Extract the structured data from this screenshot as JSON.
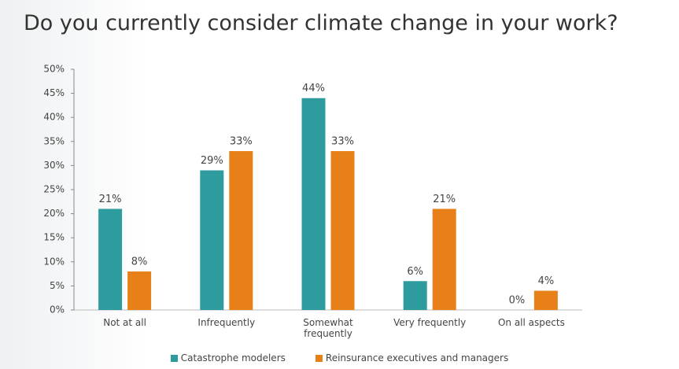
{
  "chart_data": {
    "type": "bar",
    "title": "Do you currently consider climate change in your work?",
    "categories": [
      "Not at all",
      "Infrequently",
      "Somewhat frequently",
      "Very frequently",
      "On all aspects"
    ],
    "series": [
      {
        "name": "Catastrophe modelers",
        "color": "#2e9c9e",
        "values": [
          21,
          29,
          44,
          6,
          0
        ],
        "value_labels": [
          "21%",
          "29%",
          "44%",
          "6%",
          "0%"
        ]
      },
      {
        "name": "Reinsurance executives and managers",
        "color": "#e8801a",
        "values": [
          8,
          33,
          33,
          21,
          4
        ],
        "value_labels": [
          "8%",
          "33%",
          "33%",
          "21%",
          "4%"
        ]
      }
    ],
    "ylim": [
      0,
      50
    ],
    "yticks": [
      {
        "value": 0,
        "label": "0%"
      },
      {
        "value": 5,
        "label": "5%"
      },
      {
        "value": 10,
        "label": "10%"
      },
      {
        "value": 15,
        "label": "15%"
      },
      {
        "value": 20,
        "label": "20%"
      },
      {
        "value": 25,
        "label": "25%"
      },
      {
        "value": 30,
        "label": "30%"
      },
      {
        "value": 35,
        "label": "35%"
      },
      {
        "value": 40,
        "label": "40%"
      },
      {
        "value": 45,
        "label": "45%"
      },
      {
        "value": 50,
        "label": "50%"
      }
    ],
    "grid": false
  }
}
